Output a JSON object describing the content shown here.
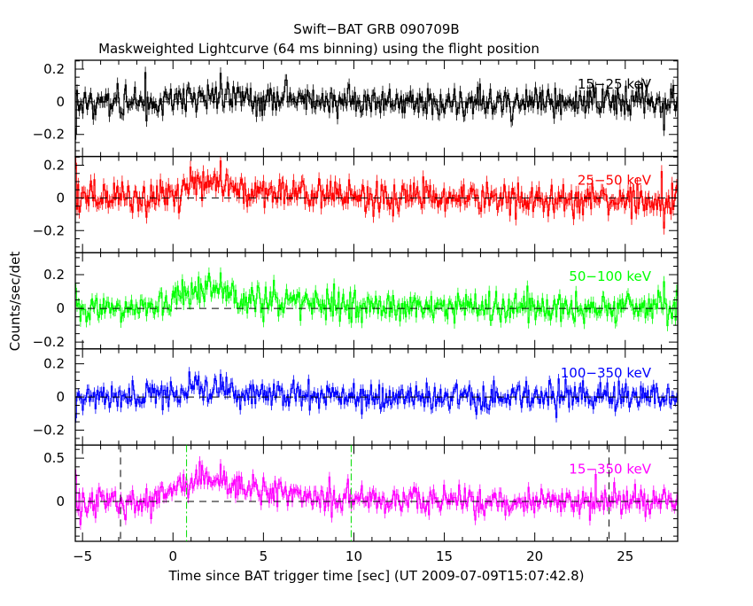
{
  "chart_data": {
    "type": "line",
    "title": "Swift−BAT GRB 090709B",
    "subtitle": "Maskweighted Lightcurve (64 ms binning) using the flight position",
    "xlabel": "Time since BAT trigger time [sec] (UT 2009-07-09T15:07:42.8)",
    "ylabel": "Counts/sec/det",
    "xlim": [
      -5.4,
      27.9
    ],
    "x_ticks": [
      -5,
      0,
      5,
      10,
      15,
      20,
      25
    ],
    "x_tick_labels": [
      "−5",
      "0",
      "5",
      "10",
      "15",
      "20",
      "25"
    ],
    "bin_size_sec": 0.064,
    "grid": false,
    "vertical_markers": [
      {
        "x": -2.9,
        "style": "dashed",
        "color": "#000000"
      },
      {
        "x": 0.75,
        "style": "dash-dot",
        "color": "#00dd00"
      },
      {
        "x": 9.85,
        "style": "dash-dot",
        "color": "#00dd00"
      },
      {
        "x": 24.1,
        "style": "dashed",
        "color": "#000000"
      }
    ],
    "series": [
      {
        "name": "15−25 keV",
        "color": "#000000",
        "ylim": [
          -0.335,
          0.254
        ],
        "y_ticks": [
          0.2,
          0,
          -0.2
        ],
        "y_tick_labels": [
          "0.2",
          "0",
          "−0.2"
        ],
        "noise_sigma": 0.06,
        "pulse_peak": 0.03,
        "seed": 11
      },
      {
        "name": "25−50 keV",
        "color": "#ff0000",
        "ylim": [
          -0.335,
          0.254
        ],
        "y_ticks": [
          0.2,
          0,
          -0.2
        ],
        "y_tick_labels": [
          "0.2",
          "0",
          "−0.2"
        ],
        "noise_sigma": 0.065,
        "pulse_peak": 0.1,
        "seed": 23
      },
      {
        "name": "50−100 keV",
        "color": "#00ff00",
        "ylim": [
          -0.24,
          0.33
        ],
        "y_ticks": [
          0.2,
          0,
          -0.2
        ],
        "y_tick_labels": [
          "0.2",
          "0",
          "−0.2"
        ],
        "noise_sigma": 0.055,
        "pulse_peak": 0.12,
        "seed": 37
      },
      {
        "name": "100−350 keV",
        "color": "#0000ff",
        "ylim": [
          -0.29,
          0.29
        ],
        "y_ticks": [
          0.2,
          0,
          -0.2
        ],
        "y_tick_labels": [
          "0.2",
          "0",
          "−0.2"
        ],
        "noise_sigma": 0.05,
        "pulse_peak": 0.04,
        "seed": 41
      },
      {
        "name": "15−350 keV",
        "color": "#ff00ff",
        "ylim": [
          -0.46,
          0.65
        ],
        "y_ticks": [
          0.5,
          0
        ],
        "y_tick_labels": [
          "0.5",
          "0"
        ],
        "noise_sigma": 0.1,
        "pulse_peak": 0.3,
        "seed": 53
      }
    ]
  }
}
